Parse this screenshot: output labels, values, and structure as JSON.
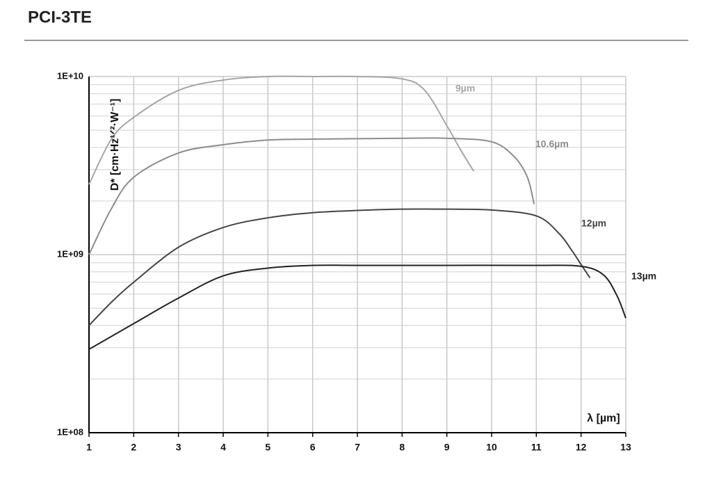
{
  "chart_data": {
    "type": "line",
    "title": "PCI-3TE",
    "xlabel": "λ [µm]",
    "ylabel": "D* [cm·Hz¹ᐟ²·W⁻¹]",
    "log_y": true,
    "grid": true,
    "xlim": [
      1,
      13
    ],
    "xticks": [
      1,
      2,
      3,
      4,
      5,
      6,
      7,
      8,
      9,
      10,
      11,
      12,
      13
    ],
    "ylim": [
      100000000,
      10000000000
    ],
    "yticks": [
      {
        "value": 100000000,
        "label": "1E+08"
      },
      {
        "value": 1000000000,
        "label": "1E+09"
      },
      {
        "value": 10000000000,
        "label": "1E+10"
      }
    ],
    "yminorticks": [
      200000000,
      300000000,
      400000000,
      500000000,
      600000000,
      700000000,
      800000000,
      900000000,
      2000000000,
      3000000000,
      4000000000,
      5000000000,
      6000000000,
      7000000000,
      8000000000,
      9000000000
    ],
    "series": [
      {
        "name": "9µm",
        "color": "#a6a6a6",
        "x": [
          1,
          1.5,
          2,
          3,
          4,
          5,
          6,
          7,
          8,
          8.5,
          9,
          9.3,
          9.6
        ],
        "values": [
          2480000000,
          4450000000,
          5900000000,
          8360000000,
          9550000000,
          10000000000,
          10000000000,
          10000000000,
          9700000000,
          8400000000,
          5300000000,
          3900000000,
          2940000000
        ]
      },
      {
        "name": "10.6µm",
        "color": "#8c8c8c",
        "x": [
          1,
          1.5,
          2,
          3,
          4,
          5,
          6,
          8,
          9,
          10,
          10.5,
          10.8,
          10.95
        ],
        "values": [
          1000000000,
          1810000000,
          2720000000,
          3720000000,
          4140000000,
          4400000000,
          4450000000,
          4500000000,
          4500000000,
          4300000000,
          3560000000,
          2720000000,
          1920000000
        ]
      },
      {
        "name": "12µm",
        "color": "#444444",
        "x": [
          1,
          1.5,
          2,
          3,
          4,
          5,
          6,
          7,
          8,
          9,
          10,
          11,
          11.5,
          11.8,
          12,
          12.2
        ],
        "values": [
          400000000,
          540000000,
          700000000,
          1100000000,
          1420000000,
          1610000000,
          1720000000,
          1770000000,
          1800000000,
          1800000000,
          1780000000,
          1650000000,
          1320000000,
          1050000000,
          880000000,
          740000000
        ]
      },
      {
        "name": "13µm",
        "color": "#222222",
        "x": [
          1,
          2,
          3,
          4,
          5,
          6,
          7,
          9,
          11,
          12,
          12.5,
          12.8,
          13
        ],
        "values": [
          294000000,
          410000000,
          570000000,
          760000000,
          840000000,
          870000000,
          870000000,
          870000000,
          870000000,
          860000000,
          770000000,
          590000000,
          440000000
        ]
      }
    ]
  }
}
